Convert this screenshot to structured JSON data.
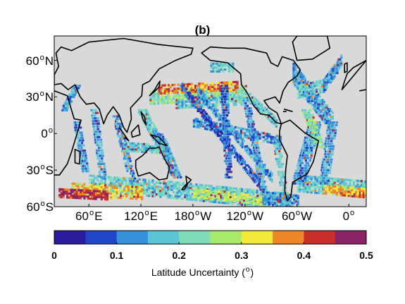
{
  "panel_title": "(b)",
  "lat_ticks": [
    {
      "value": 60,
      "label": "60",
      "sup": "o",
      "hem": "N"
    },
    {
      "value": 30,
      "label": "30",
      "sup": "o",
      "hem": "N"
    },
    {
      "value": 0,
      "label": "0",
      "sup": "o",
      "hem": ""
    },
    {
      "value": -30,
      "label": "30",
      "sup": "o",
      "hem": "S"
    },
    {
      "value": -60,
      "label": "60",
      "sup": "o",
      "hem": "S"
    }
  ],
  "lon_ticks": [
    {
      "value": 60,
      "label": "60",
      "sup": "o",
      "hem": "E"
    },
    {
      "value": 120,
      "label": "120",
      "sup": "o",
      "hem": "E"
    },
    {
      "value": 180,
      "label": "180",
      "sup": "o",
      "hem": "W"
    },
    {
      "value": 240,
      "label": "120",
      "sup": "o",
      "hem": "W"
    },
    {
      "value": 300,
      "label": "60",
      "sup": "o",
      "hem": "W"
    },
    {
      "value": 360,
      "label": "0",
      "sup": "o",
      "hem": ""
    }
  ],
  "colorbar": {
    "title_main": "Latitude Uncertainty (",
    "title_sup": "o",
    "title_end": ")",
    "tick_labels": [
      "0",
      "0.1",
      "0.2",
      "0.3",
      "0.4",
      "0.5"
    ],
    "tick_values": [
      0,
      0.1,
      0.2,
      0.3,
      0.4,
      0.5
    ],
    "range": [
      0,
      0.5
    ],
    "colors": [
      "#2a1a9c",
      "#1f46c7",
      "#3a8fd9",
      "#5cc6d6",
      "#7fdcb8",
      "#a8e86a",
      "#f3ea3a",
      "#f0862a",
      "#c9302c",
      "#8a2466"
    ]
  },
  "map": {
    "lon_range": [
      20,
      380
    ],
    "lat_range": [
      -60,
      80
    ],
    "land_color": "#d9d9d9",
    "coast_color": "#000000"
  }
}
